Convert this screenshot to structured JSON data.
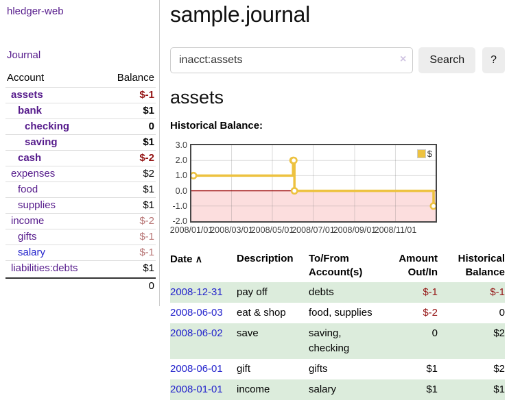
{
  "app": {
    "title": "hledger-web",
    "nav_journal": "Journal"
  },
  "sidebar": {
    "header": {
      "account": "Account",
      "balance": "Balance"
    },
    "accounts": [
      {
        "name": "assets",
        "balance": "$-1"
      },
      {
        "name": "bank",
        "balance": "$1"
      },
      {
        "name": "checking",
        "balance": "0"
      },
      {
        "name": "saving",
        "balance": "$1"
      },
      {
        "name": "cash",
        "balance": "$-2"
      },
      {
        "name": "expenses",
        "balance": "$2"
      },
      {
        "name": "food",
        "balance": "$1"
      },
      {
        "name": "supplies",
        "balance": "$1"
      },
      {
        "name": "income",
        "balance": "$-2"
      },
      {
        "name": "gifts",
        "balance": "$-1"
      },
      {
        "name": "salary",
        "balance": "$-1"
      },
      {
        "name": "liabilities:debts",
        "balance": "$1"
      }
    ],
    "total": "0"
  },
  "main": {
    "title": "sample.journal",
    "search": {
      "value": "inacct:assets",
      "clear_icon": "×",
      "button_label": "Search",
      "help_label": "?"
    },
    "account_heading": "assets",
    "chart_title": "Historical Balance:"
  },
  "chart_data": {
    "type": "line",
    "step": true,
    "title": "Historical Balance:",
    "series": [
      {
        "name": "$",
        "color": "#edc240",
        "points": [
          [
            "2008-01-01",
            1
          ],
          [
            "2008-06-01",
            2
          ],
          [
            "2008-06-02",
            2
          ],
          [
            "2008-06-03",
            0
          ],
          [
            "2008-12-31",
            -1
          ]
        ]
      }
    ],
    "ylim": [
      -2.0,
      3.0
    ],
    "ytick_values": [
      3.0,
      2.0,
      1.0,
      0.0,
      -1.0,
      -2.0
    ],
    "ytick_labels": [
      "3.0",
      "2.0",
      "1.0",
      "0.0",
      "-1.0",
      "-2.0"
    ],
    "xrange": [
      "2008-01-01",
      "2008-12-31"
    ],
    "xtick_values": [
      "2008-01-01",
      "2008-03-01",
      "2008-05-01",
      "2008-07-01",
      "2008-09-01",
      "2008-11-01"
    ],
    "xtick_labels": [
      "2008/01/01",
      "2008/03/01",
      "2008/05/01",
      "2008/07/01",
      "2008/09/01",
      "2008/11/01"
    ],
    "legend": {
      "label": "$",
      "position": "top-right"
    },
    "grid": true,
    "negative_region_color": "#fcdede",
    "zero_line_color": "#990000",
    "marker_fill": "#ffffff"
  },
  "register": {
    "headers": {
      "date": "Date",
      "sort_asc_icon": "∧",
      "description": "Description",
      "accounts": "To/From Account(s)",
      "amount": "Amount Out/In",
      "balance": "Historical Balance"
    },
    "rows": [
      {
        "date": "2008-12-31",
        "description": "pay off",
        "accounts": "debts",
        "amount": "$-1",
        "balance": "$-1"
      },
      {
        "date": "2008-06-03",
        "description": "eat & shop",
        "accounts": "food, supplies",
        "amount": "$-2",
        "balance": "0"
      },
      {
        "date": "2008-06-02",
        "description": "save",
        "accounts": "saving, checking",
        "amount": "0",
        "balance": "$2"
      },
      {
        "date": "2008-06-01",
        "description": "gift",
        "accounts": "gifts",
        "amount": "$1",
        "balance": "$2"
      },
      {
        "date": "2008-01-01",
        "description": "income",
        "accounts": "salary",
        "amount": "$1",
        "balance": "$1"
      }
    ]
  }
}
